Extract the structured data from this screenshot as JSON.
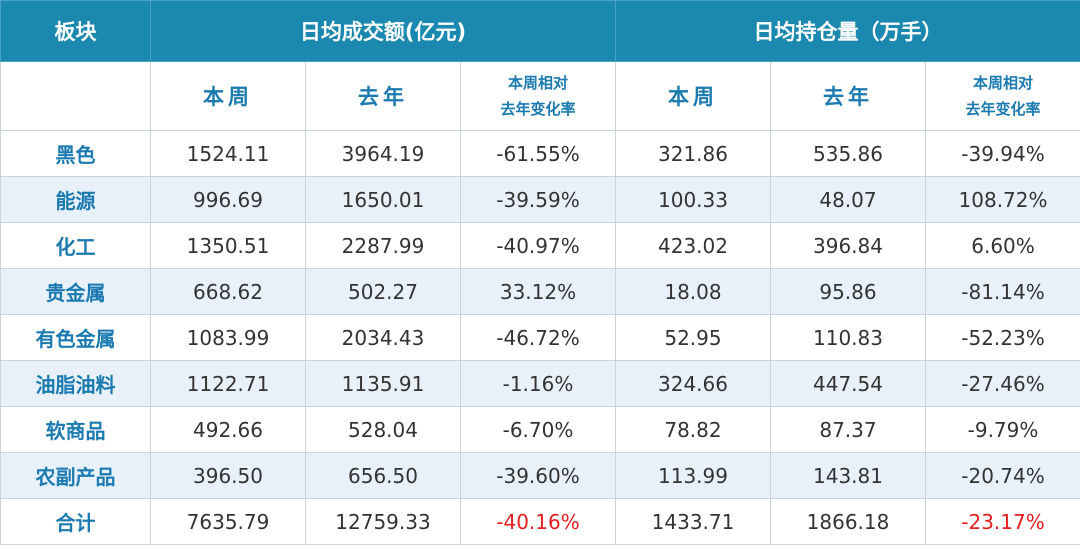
{
  "header": {
    "sector": "板块",
    "turnover_group": "日均成交额(亿元)",
    "position_group": "日均持仓量（万手）",
    "this_week": "本周",
    "last_year": "去年",
    "change_line1": "本周相对",
    "change_line2": "去年变化率"
  },
  "rows": [
    {
      "name": "黑色",
      "t_week": "1524.11",
      "t_year": "3964.19",
      "t_chg": "-61.55%",
      "p_week": "321.86",
      "p_year": "535.86",
      "p_chg": "-39.94%"
    },
    {
      "name": "能源",
      "t_week": "996.69",
      "t_year": "1650.01",
      "t_chg": "-39.59%",
      "p_week": "100.33",
      "p_year": "48.07",
      "p_chg": "108.72%"
    },
    {
      "name": "化工",
      "t_week": "1350.51",
      "t_year": "2287.99",
      "t_chg": "-40.97%",
      "p_week": "423.02",
      "p_year": "396.84",
      "p_chg": "6.60%"
    },
    {
      "name": "贵金属",
      "t_week": "668.62",
      "t_year": "502.27",
      "t_chg": "33.12%",
      "p_week": "18.08",
      "p_year": "95.86",
      "p_chg": "-81.14%"
    },
    {
      "name": "有色金属",
      "t_week": "1083.99",
      "t_year": "2034.43",
      "t_chg": "-46.72%",
      "p_week": "52.95",
      "p_year": "110.83",
      "p_chg": "-52.23%"
    },
    {
      "name": "油脂油料",
      "t_week": "1122.71",
      "t_year": "1135.91",
      "t_chg": "-1.16%",
      "p_week": "324.66",
      "p_year": "447.54",
      "p_chg": "-27.46%"
    },
    {
      "name": "软商品",
      "t_week": "492.66",
      "t_year": "528.04",
      "t_chg": "-6.70%",
      "p_week": "78.82",
      "p_year": "87.37",
      "p_chg": "-9.79%"
    },
    {
      "name": "农副产品",
      "t_week": "396.50",
      "t_year": "656.50",
      "t_chg": "-39.60%",
      "p_week": "113.99",
      "p_year": "143.81",
      "p_chg": "-20.74%"
    },
    {
      "name": "合计",
      "t_week": "7635.79",
      "t_year": "12759.33",
      "t_chg": "-40.16%",
      "p_week": "1433.71",
      "p_year": "1866.18",
      "p_chg": "-23.17%"
    }
  ],
  "colors": {
    "header_bg": "#1b88b0",
    "label_blue": "#1b7ab0",
    "stripe": "#e8f0f9",
    "highlight_red": "#e41e1e"
  }
}
